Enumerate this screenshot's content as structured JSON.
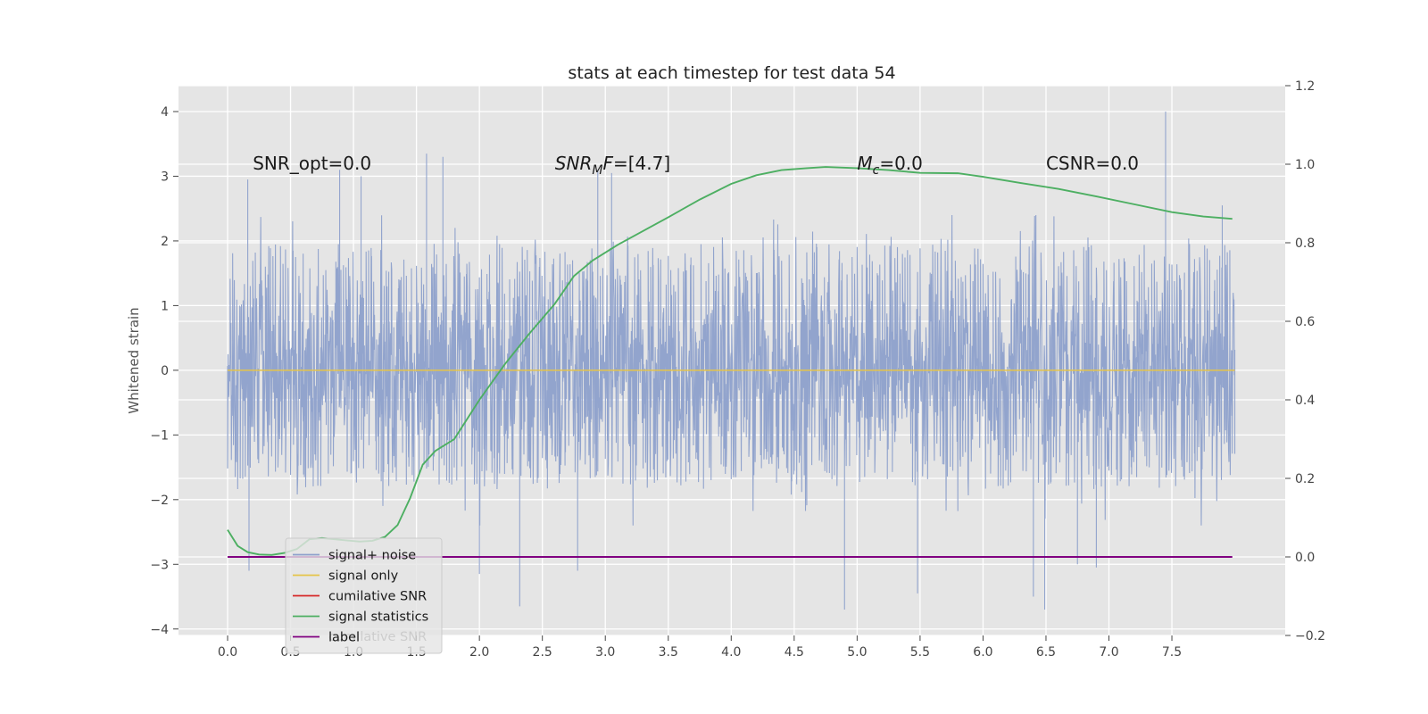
{
  "chart_data": {
    "type": "line",
    "title": "stats at each timestep for test data 54",
    "xlabel": "",
    "ylabel": "Whitened strain",
    "xlim": [
      -0.39,
      8.4
    ],
    "ylim": [
      -4.1,
      4.4
    ],
    "y2lim": [
      -0.2,
      1.2
    ],
    "x_ticks": [
      0.0,
      0.5,
      1.0,
      1.5,
      2.0,
      2.5,
      3.0,
      3.5,
      4.0,
      4.5,
      5.0,
      5.5,
      6.0,
      6.5,
      7.0,
      7.5
    ],
    "x_tick_labels": [
      "0.0",
      "0.5",
      "1.0",
      "1.5",
      "2.0",
      "2.5",
      "3.0",
      "3.5",
      "4.0",
      "4.5",
      "5.0",
      "5.5",
      "6.0",
      "6.5",
      "7.0",
      "7.5"
    ],
    "y_ticks": [
      -4,
      -3,
      -2,
      -1,
      0,
      1,
      2,
      3,
      4
    ],
    "y_tick_labels": [
      "−4",
      "−3",
      "−2",
      "−1",
      "0",
      "1",
      "2",
      "3",
      "4"
    ],
    "y2_ticks": [
      -0.2,
      0.0,
      0.2,
      0.4,
      0.6,
      0.8,
      1.0,
      1.2
    ],
    "y2_tick_labels": [
      "−0.2",
      "0.0",
      "0.2",
      "0.4",
      "0.6",
      "0.8",
      "1.0",
      "1.2"
    ],
    "grid": true,
    "legend_position": "bottom-left",
    "annotations": [
      {
        "key": "snr_opt",
        "text": "SNR_opt=0.0",
        "x": 0.2,
        "y": 3.2
      },
      {
        "key": "snr_mf",
        "text": "SNR_MF=[4.7]",
        "x": 2.6,
        "y": 3.2
      },
      {
        "key": "mc",
        "text": "M_c=0.0",
        "x": 5.0,
        "y": 3.2
      },
      {
        "key": "csnr",
        "text": "CSNR=0.0",
        "x": 6.5,
        "y": 3.2
      }
    ],
    "series": [
      {
        "name": "signal+ noise",
        "color": "#8da0cb",
        "axis": "left",
        "kind": "noise",
        "x_range": [
          0.0,
          8.0
        ],
        "band": [
          -1.6,
          1.7
        ],
        "extremes": [
          {
            "x": 0.16,
            "y": 2.95
          },
          {
            "x": 0.17,
            "y": -3.1
          },
          {
            "x": 0.89,
            "y": 3.1
          },
          {
            "x": 1.06,
            "y": 3.0
          },
          {
            "x": 1.58,
            "y": 3.35
          },
          {
            "x": 1.71,
            "y": 3.3
          },
          {
            "x": 2.0,
            "y": -3.15
          },
          {
            "x": 2.32,
            "y": -3.65
          },
          {
            "x": 2.78,
            "y": -3.1
          },
          {
            "x": 2.94,
            "y": 3.1
          },
          {
            "x": 3.05,
            "y": 3.05
          },
          {
            "x": 4.9,
            "y": -3.7
          },
          {
            "x": 5.48,
            "y": -3.45
          },
          {
            "x": 6.4,
            "y": -3.5
          },
          {
            "x": 6.49,
            "y": -3.7
          },
          {
            "x": 6.75,
            "y": -3.0
          },
          {
            "x": 6.9,
            "y": -3.05
          },
          {
            "x": 7.45,
            "y": 4.0
          },
          {
            "x": 7.9,
            "y": 2.55
          }
        ]
      },
      {
        "name": "signal only",
        "color": "#e5c44a",
        "axis": "left",
        "x": [
          0.0,
          8.0
        ],
        "y": [
          0.0,
          0.0
        ]
      },
      {
        "name": "cumilative SNR",
        "color": "#d62728",
        "axis": "left",
        "x": [],
        "y": []
      },
      {
        "name": "signal statistics",
        "color": "#4daf62",
        "axis": "right",
        "x": [
          0.0,
          0.08,
          0.16,
          0.25,
          0.35,
          0.45,
          0.55,
          0.65,
          0.75,
          0.85,
          0.95,
          1.05,
          1.15,
          1.25,
          1.35,
          1.45,
          1.55,
          1.65,
          1.8,
          2.0,
          2.2,
          2.4,
          2.6,
          2.75,
          2.9,
          3.1,
          3.3,
          3.5,
          3.75,
          4.0,
          4.2,
          4.4,
          4.6,
          4.75,
          5.0,
          5.25,
          5.5,
          5.8,
          6.0,
          6.3,
          6.6,
          6.9,
          7.2,
          7.5,
          7.75,
          7.98
        ],
        "y": [
          0.069,
          0.028,
          0.012,
          0.006,
          0.005,
          0.01,
          0.02,
          0.045,
          0.048,
          0.045,
          0.042,
          0.039,
          0.041,
          0.051,
          0.081,
          0.15,
          0.235,
          0.27,
          0.3,
          0.4,
          0.49,
          0.57,
          0.645,
          0.715,
          0.755,
          0.795,
          0.83,
          0.865,
          0.91,
          0.95,
          0.972,
          0.985,
          0.99,
          0.993,
          0.99,
          0.985,
          0.978,
          0.977,
          0.968,
          0.952,
          0.937,
          0.918,
          0.898,
          0.878,
          0.867,
          0.861
        ]
      },
      {
        "name": "label",
        "color": "#800080",
        "axis": "right",
        "x": [
          0.0,
          7.98
        ],
        "y": [
          0.0,
          0.0
        ]
      }
    ],
    "legend_ghost_text": "cumilative SNR"
  }
}
